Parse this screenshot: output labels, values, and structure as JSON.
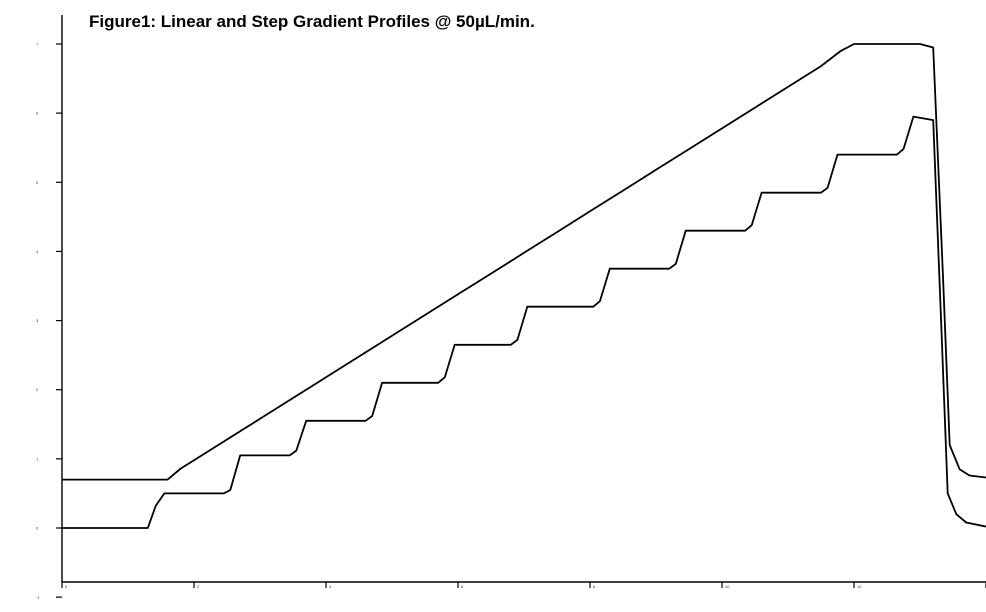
{
  "chart_data": {
    "type": "line",
    "title": "Figure1: Linear and Step Gradient Profiles @ 50µL/min.",
    "xlabel": "",
    "ylabel": "",
    "xlim": [
      0,
      14
    ],
    "ylim": [
      -1,
      7
    ],
    "y_ticks": [
      -1,
      0,
      1,
      2,
      3,
      4,
      5,
      6,
      7
    ],
    "x_ticks": [
      0,
      2,
      4,
      6,
      8,
      10,
      12,
      14
    ],
    "grid": false,
    "series": [
      {
        "x": [
          0,
          1.5,
          1.6,
          1.8,
          2.0,
          2.5,
          3.0,
          3.5,
          4.0,
          4.5,
          5.0,
          5.5,
          6.0,
          6.5,
          7.0,
          7.5,
          8.0,
          8.5,
          9.0,
          9.5,
          10.0,
          10.5,
          11.0,
          11.5,
          11.8,
          12.0,
          12.5,
          13.0,
          13.2,
          13.35,
          13.45,
          13.6,
          13.75,
          14.0
        ],
        "y": [
          0.7,
          0.7,
          0.7,
          0.86,
          0.98,
          1.28,
          1.58,
          1.88,
          2.18,
          2.48,
          2.78,
          3.08,
          3.38,
          3.68,
          3.98,
          4.28,
          4.58,
          4.88,
          5.18,
          5.48,
          5.78,
          6.08,
          6.38,
          6.68,
          6.9,
          7.0,
          7.0,
          7.0,
          6.95,
          3.6,
          1.2,
          0.85,
          0.76,
          0.73
        ]
      },
      {
        "x": [
          0,
          1.3,
          1.42,
          1.55,
          2.45,
          2.55,
          2.7,
          3.45,
          3.55,
          3.7,
          4.6,
          4.7,
          4.85,
          5.7,
          5.8,
          5.95,
          6.8,
          6.9,
          7.05,
          8.05,
          8.15,
          8.3,
          9.2,
          9.3,
          9.45,
          10.35,
          10.45,
          10.6,
          11.5,
          11.6,
          11.75,
          12.65,
          12.75,
          12.9,
          13.2,
          13.32,
          13.42,
          13.55,
          13.7,
          14.0
        ],
        "y": [
          0,
          0,
          0.32,
          0.5,
          0.5,
          0.55,
          1.05,
          1.05,
          1.12,
          1.55,
          1.55,
          1.62,
          2.1,
          2.1,
          2.18,
          2.65,
          2.65,
          2.72,
          3.2,
          3.2,
          3.28,
          3.75,
          3.75,
          3.82,
          4.3,
          4.3,
          4.38,
          4.85,
          4.85,
          4.92,
          5.4,
          5.4,
          5.48,
          5.95,
          5.9,
          3.0,
          0.5,
          0.2,
          0.08,
          0.02
        ]
      }
    ]
  }
}
